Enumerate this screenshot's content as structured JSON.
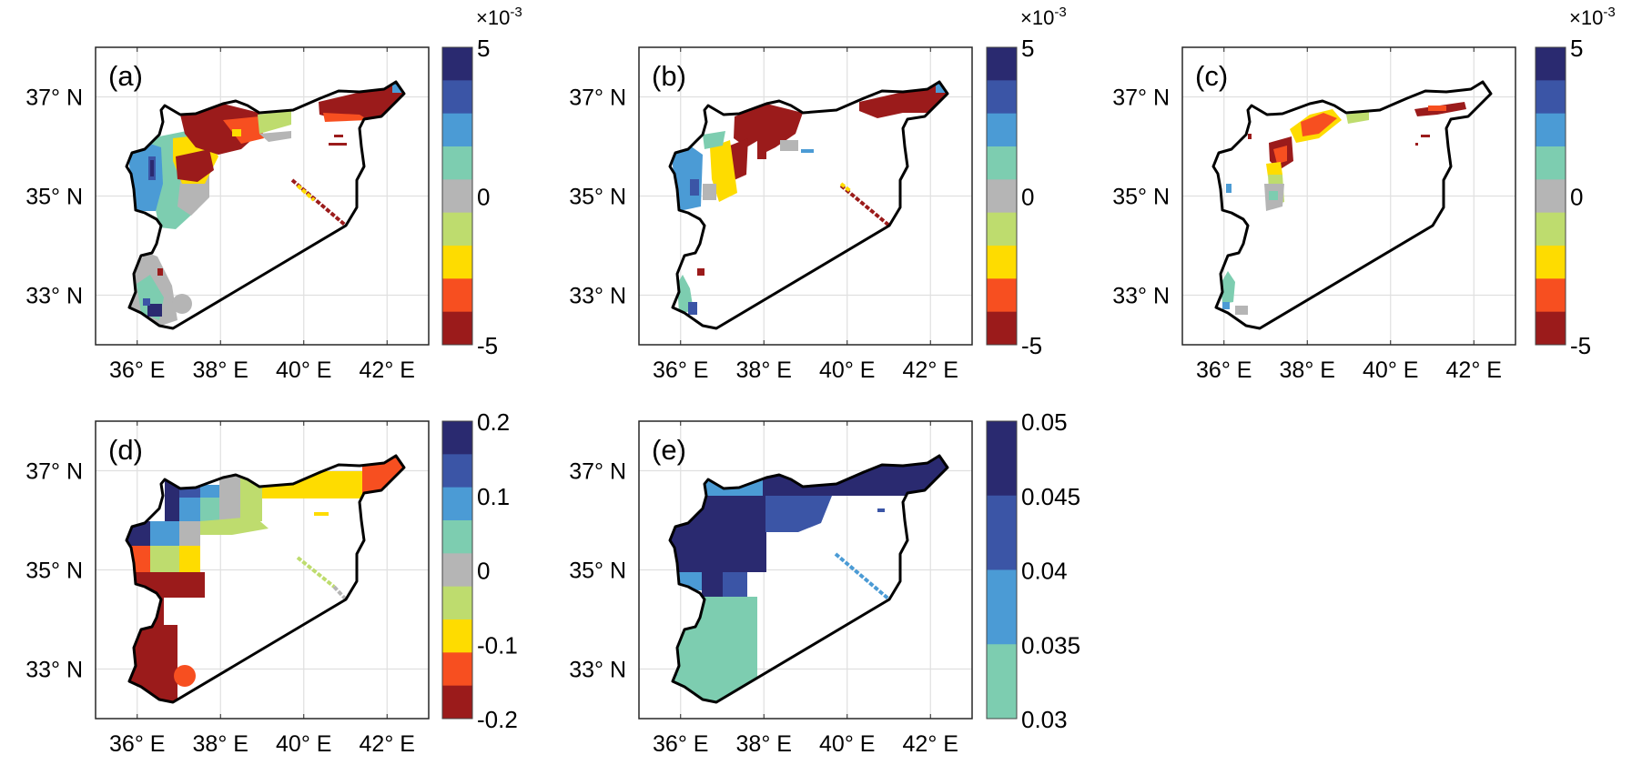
{
  "figure": {
    "palette": {
      "navy": "#2a2a70",
      "blue": "#3b55a6",
      "lightblue": "#4b9bd5",
      "teal": "#7dcdb0",
      "gray": "#b5b5b5",
      "lime": "#bedc6e",
      "yellow": "#fedc00",
      "orange": "#f74f20",
      "darkred": "#9b1b1b",
      "outline": "#000000",
      "grid": "#e0e0e0"
    },
    "panels": [
      {
        "id": "a",
        "label": "(a)",
        "yticks": [
          "37° N",
          "35° N",
          "33° N"
        ],
        "xticks": [
          "36° E",
          "38° E",
          "40° E",
          "42° E"
        ],
        "colorbar": {
          "exponent": "×10",
          "exponent_power": "-3",
          "ticks": [
            "5",
            "0",
            "-5"
          ],
          "colors": [
            "navy",
            "blue",
            "lightblue",
            "teal",
            "gray",
            "lime",
            "yellow",
            "orange",
            "darkred"
          ]
        }
      },
      {
        "id": "b",
        "label": "(b)",
        "yticks": [
          "37° N",
          "35° N",
          "33° N"
        ],
        "xticks": [
          "36° E",
          "38° E",
          "40° E",
          "42° E"
        ],
        "colorbar": {
          "exponent": "×10",
          "exponent_power": "-3",
          "ticks": [
            "5",
            "0",
            "-5"
          ],
          "colors": [
            "navy",
            "blue",
            "lightblue",
            "teal",
            "gray",
            "lime",
            "yellow",
            "orange",
            "darkred"
          ]
        }
      },
      {
        "id": "c",
        "label": "(c)",
        "yticks": [
          "37° N",
          "35° N",
          "33° N"
        ],
        "xticks": [
          "36° E",
          "38° E",
          "40° E",
          "42° E"
        ],
        "colorbar": {
          "exponent": "×10",
          "exponent_power": "-3",
          "ticks": [
            "5",
            "0",
            "-5"
          ],
          "colors": [
            "navy",
            "blue",
            "lightblue",
            "teal",
            "gray",
            "lime",
            "yellow",
            "orange",
            "darkred"
          ]
        }
      },
      {
        "id": "d",
        "label": "(d)",
        "yticks": [
          "37° N",
          "35° N",
          "33° N"
        ],
        "xticks": [
          "36° E",
          "38° E",
          "40° E",
          "42° E"
        ],
        "colorbar": {
          "ticks": [
            "0.2",
            "0.1",
            "0",
            "-0.1",
            "-0.2"
          ],
          "colors": [
            "navy",
            "blue",
            "lightblue",
            "teal",
            "gray",
            "lime",
            "yellow",
            "orange",
            "darkred"
          ]
        }
      },
      {
        "id": "e",
        "label": "(e)",
        "yticks": [
          "37° N",
          "35° N",
          "33° N"
        ],
        "xticks": [
          "36° E",
          "38° E",
          "40° E",
          "42° E"
        ],
        "colorbar": {
          "ticks": [
            "0.05",
            "0.045",
            "0.04",
            "0.035",
            "0.03"
          ],
          "colors": [
            "navy",
            "blue",
            "lightblue",
            "teal"
          ]
        }
      }
    ]
  }
}
